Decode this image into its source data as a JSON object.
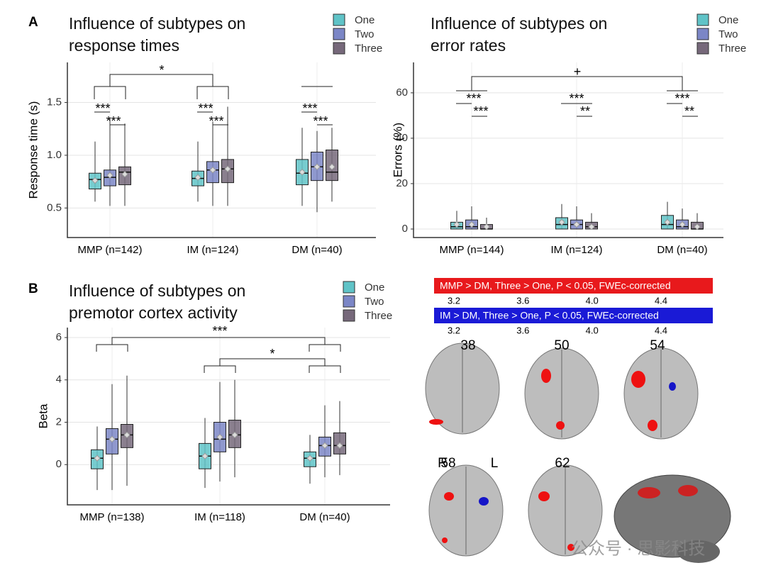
{
  "panel_labels": [
    "A",
    "B"
  ],
  "chart_data": [
    {
      "type": "box",
      "title": "Influence of subtypes on response times",
      "ylabel": "Response time (s)",
      "categories": [
        "MMP (n=142)",
        "IM (n=124)",
        "DM (n=40)"
      ],
      "ylim": [
        0.22,
        1.88
      ],
      "yticks": [
        0.5,
        {
          "value": 1,
          "label": "1.0"
        },
        1.5
      ],
      "grid": true,
      "legend": "top-right",
      "annotations": [
        "*",
        "***",
        "***",
        "***",
        "***",
        "***",
        "***"
      ],
      "series": [
        {
          "name": "One",
          "color": "#5fc3c7",
          "values": [
            {
              "whislo": 0.56,
              "q1": 0.68,
              "median": 0.77,
              "q3": 0.83,
              "whishi": 1.13,
              "mean": 0.76
            },
            {
              "whislo": 0.56,
              "q1": 0.71,
              "median": 0.78,
              "q3": 0.85,
              "whishi": 1.13,
              "mean": 0.79
            },
            {
              "whislo": 0.52,
              "q1": 0.72,
              "median": 0.83,
              "q3": 0.96,
              "whishi": 1.26,
              "mean": 0.84
            }
          ]
        },
        {
          "name": "Two",
          "color": "#7b86c6",
          "values": [
            {
              "whislo": 0.52,
              "q1": 0.71,
              "median": 0.79,
              "q3": 0.86,
              "whishi": 1.36,
              "mean": 0.81
            },
            {
              "whislo": 0.52,
              "q1": 0.74,
              "median": 0.86,
              "q3": 0.94,
              "whishi": 1.32,
              "mean": 0.86
            },
            {
              "whislo": 0.46,
              "q1": 0.76,
              "median": 0.89,
              "q3": 1.03,
              "whishi": 1.23,
              "mean": 0.89
            }
          ]
        },
        {
          "name": "Three",
          "color": "#76687a",
          "values": [
            {
              "whislo": 0.52,
              "q1": 0.72,
              "median": 0.84,
              "q3": 0.89,
              "whishi": 1.3,
              "mean": 0.82
            },
            {
              "whislo": 0.52,
              "q1": 0.74,
              "median": 0.87,
              "q3": 0.96,
              "whishi": 1.46,
              "mean": 0.87
            },
            {
              "whislo": 0.56,
              "q1": 0.76,
              "median": 0.84,
              "q3": 1.05,
              "whishi": 1.26,
              "mean": 0.89
            }
          ]
        }
      ]
    },
    {
      "type": "box",
      "title": "Influence of subtypes on error rates",
      "ylabel": "Errors (%)",
      "categories": [
        "MMP (n=144)",
        "IM (n=124)",
        "DM (n=40)"
      ],
      "ylim": [
        -3.75,
        73.4
      ],
      "yticks": [
        0,
        20,
        40,
        60
      ],
      "grid": true,
      "legend": "top-right",
      "annotations": [
        "+",
        "***",
        "***",
        "***",
        "**",
        "***",
        "**"
      ],
      "series": [
        {
          "name": "One",
          "color": "#5fc3c7",
          "values": [
            {
              "whislo": 0,
              "q1": 0,
              "median": 1,
              "q3": 3,
              "whishi": 8,
              "mean": 2
            },
            {
              "whislo": 0,
              "q1": 0,
              "median": 2,
              "q3": 5,
              "whishi": 11,
              "mean": 3
            },
            {
              "whislo": 0,
              "q1": 0,
              "median": 2,
              "q3": 6,
              "whishi": 12,
              "mean": 3
            }
          ]
        },
        {
          "name": "Two",
          "color": "#7b86c6",
          "values": [
            {
              "whislo": 0,
              "q1": 0,
              "median": 1,
              "q3": 4,
              "whishi": 10,
              "mean": 2
            },
            {
              "whislo": 0,
              "q1": 0,
              "median": 2,
              "q3": 4,
              "whishi": 10,
              "mean": 2
            },
            {
              "whislo": 0,
              "q1": 0,
              "median": 1,
              "q3": 4,
              "whishi": 9,
              "mean": 2
            }
          ]
        },
        {
          "name": "Three",
          "color": "#76687a",
          "values": [
            {
              "whislo": 0,
              "q1": 0,
              "median": 0,
              "q3": 2,
              "whishi": 5,
              "mean": 1
            },
            {
              "whislo": 0,
              "q1": 0,
              "median": 1,
              "q3": 3,
              "whishi": 7,
              "mean": 1
            },
            {
              "whislo": 0,
              "q1": 0,
              "median": 0,
              "q3": 3,
              "whishi": 7,
              "mean": 1
            }
          ]
        }
      ]
    },
    {
      "type": "box",
      "title": "Influence of subtypes on premotor cortex activity",
      "ylabel": "Beta",
      "categories": [
        "MMP (n=138)",
        "IM (n=118)",
        "DM (n=40)"
      ],
      "ylim": [
        -1.9,
        6.47
      ],
      "yticks": [
        0,
        2,
        4,
        6
      ],
      "grid": true,
      "legend": "top-right",
      "annotations": [
        "***",
        "*"
      ],
      "series": [
        {
          "name": "One",
          "color": "#5fc3c7",
          "values": [
            {
              "whislo": -1.2,
              "q1": -0.2,
              "median": 0.3,
              "q3": 0.7,
              "whishi": 1.8,
              "mean": 0.3
            },
            {
              "whislo": -1.1,
              "q1": -0.2,
              "median": 0.4,
              "q3": 1,
              "whishi": 2.2,
              "mean": 0.4
            },
            {
              "whislo": -0.9,
              "q1": -0.1,
              "median": 0.3,
              "q3": 0.6,
              "whishi": 1.4,
              "mean": 0.3
            }
          ]
        },
        {
          "name": "Two",
          "color": "#7b86c6",
          "values": [
            {
              "whislo": -1.2,
              "q1": 0.5,
              "median": 1.2,
              "q3": 1.7,
              "whishi": 3.8,
              "mean": 1.2
            },
            {
              "whislo": -0.8,
              "q1": 0.6,
              "median": 1.2,
              "q3": 2,
              "whishi": 3.9,
              "mean": 1.3
            },
            {
              "whislo": -0.6,
              "q1": 0.4,
              "median": 0.9,
              "q3": 1.3,
              "whishi": 2.8,
              "mean": 0.9
            }
          ]
        },
        {
          "name": "Three",
          "color": "#76687a",
          "values": [
            {
              "whislo": -1,
              "q1": 0.8,
              "median": 1.4,
              "q3": 1.9,
              "whishi": 4.2,
              "mean": 1.4
            },
            {
              "whislo": -0.6,
              "q1": 0.8,
              "median": 1.4,
              "q3": 2.1,
              "whishi": 4,
              "mean": 1.4
            },
            {
              "whislo": -0.5,
              "q1": 0.5,
              "median": 0.9,
              "q3": 1.5,
              "whishi": 3,
              "mean": 0.9
            }
          ]
        }
      ]
    }
  ],
  "brain_panel": {
    "colorbars": [
      {
        "label": "MMP > DM, Three > One, P < 0.05, FWEc-corrected",
        "color": "#e8191c",
        "ticks": [
          3.2,
          3.6,
          {
            "value": 4,
            "label": "4.0"
          },
          4.4
        ]
      },
      {
        "label": "IM > DM, Three > One, P < 0.05, FWEc-corrected",
        "color": "#1a1ad6",
        "ticks": [
          3.2,
          3.6,
          {
            "value": 4,
            "label": "4.0"
          },
          4.4
        ]
      }
    ],
    "slices": [
      "38",
      "50",
      "54",
      "58",
      "62"
    ],
    "orientation": [
      "R",
      "L"
    ]
  },
  "watermark": "公众号 · 思影科技"
}
